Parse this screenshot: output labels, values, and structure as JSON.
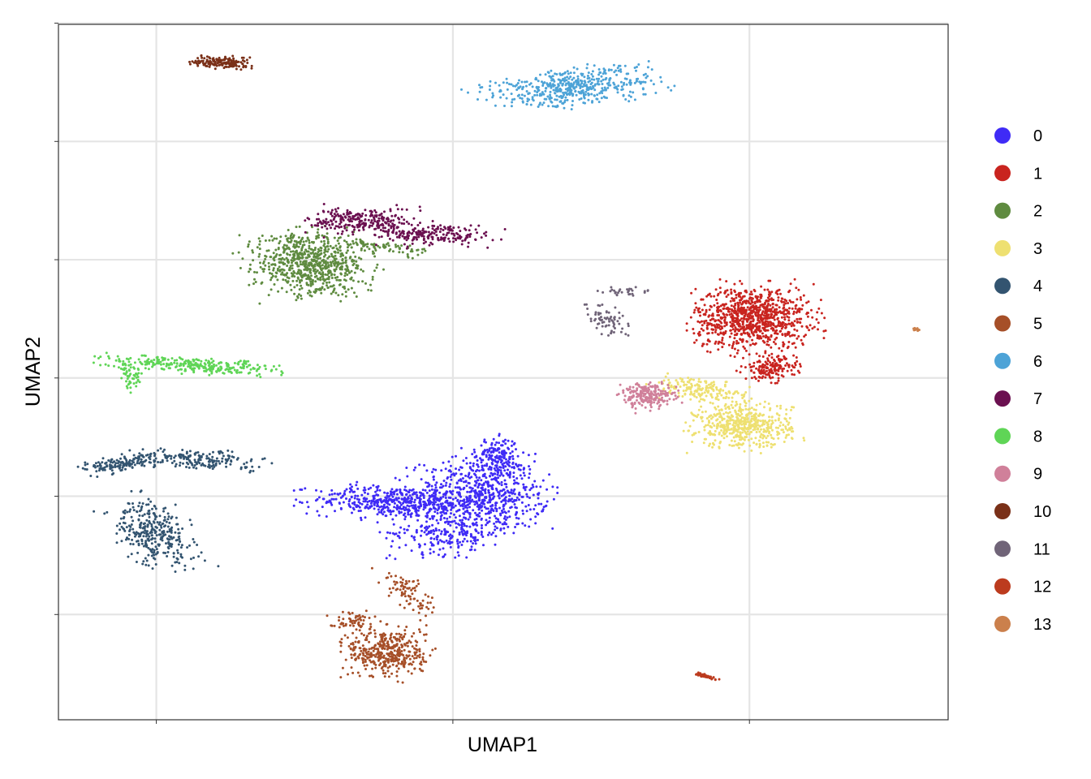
{
  "chart_data": {
    "type": "scatter",
    "title": "",
    "xlabel": "UMAP1",
    "ylabel": "UMAP2",
    "x_ticks_labeled": false,
    "y_ticks_labeled": false,
    "xlim": [
      -3.3,
      26.7
    ],
    "ylim": [
      -28.9,
      29.9
    ],
    "x_gridlines": [
      0,
      10,
      20
    ],
    "y_gridlines": [
      -20,
      -10,
      0,
      10,
      20,
      30
    ],
    "grid": true,
    "legend_position": "right",
    "clusters": [
      {
        "name": "0",
        "color": "#3F2BF6",
        "n": 1500,
        "blobs": [
          {
            "x": 11.0,
            "y": -9.8,
            "sx": 1.05,
            "sy": 1.55,
            "rot": 0.15,
            "w": 0.45
          },
          {
            "x": 8.0,
            "y": -10.5,
            "sx": 1.35,
            "sy": 0.65,
            "rot": -0.1,
            "w": 0.3
          },
          {
            "x": 9.8,
            "y": -13.1,
            "sx": 1.0,
            "sy": 0.9,
            "rot": 0.0,
            "w": 0.15
          },
          {
            "x": 11.5,
            "y": -6.5,
            "sx": 0.35,
            "sy": 0.7,
            "rot": 0.0,
            "w": 0.1
          }
        ]
      },
      {
        "name": "1",
        "color": "#C9241F",
        "n": 1100,
        "blobs": [
          {
            "x": 20.1,
            "y": 5.1,
            "sx": 0.95,
            "sy": 1.3,
            "rot": 0.0,
            "w": 0.85
          },
          {
            "x": 20.7,
            "y": 0.8,
            "sx": 0.45,
            "sy": 0.5,
            "rot": 0.0,
            "w": 0.15
          }
        ]
      },
      {
        "name": "2",
        "color": "#5F8B40",
        "n": 800,
        "blobs": [
          {
            "x": 5.2,
            "y": 9.6,
            "sx": 0.95,
            "sy": 1.25,
            "rot": 0.2,
            "w": 0.9
          },
          {
            "x": 7.5,
            "y": 11.1,
            "sx": 0.9,
            "sy": 0.25,
            "rot": -0.35,
            "w": 0.1
          }
        ]
      },
      {
        "name": "3",
        "color": "#EEE071",
        "n": 700,
        "blobs": [
          {
            "x": 19.8,
            "y": -4.0,
            "sx": 0.8,
            "sy": 0.95,
            "rot": 0.0,
            "w": 0.75
          },
          {
            "x": 18.3,
            "y": -1.0,
            "sx": 0.8,
            "sy": 0.45,
            "rot": -0.35,
            "w": 0.25
          }
        ]
      },
      {
        "name": "4",
        "color": "#335470",
        "n": 650,
        "blobs": [
          {
            "x": -0.1,
            "y": -13.0,
            "sx": 0.6,
            "sy": 1.35,
            "rot": 0.25,
            "w": 0.5
          },
          {
            "x": 1.2,
            "y": -6.9,
            "sx": 1.1,
            "sy": 0.4,
            "rot": -0.15,
            "w": 0.3
          },
          {
            "x": -1.3,
            "y": -7.3,
            "sx": 0.6,
            "sy": 0.3,
            "rot": 0.4,
            "w": 0.2
          }
        ]
      },
      {
        "name": "5",
        "color": "#A64F28",
        "n": 550,
        "blobs": [
          {
            "x": 7.8,
            "y": -23.2,
            "sx": 0.65,
            "sy": 1.05,
            "rot": 0.0,
            "w": 0.75
          },
          {
            "x": 8.4,
            "y": -18.0,
            "sx": 0.3,
            "sy": 0.9,
            "rot": 0.35,
            "w": 0.15
          },
          {
            "x": 6.6,
            "y": -20.5,
            "sx": 0.4,
            "sy": 0.35,
            "rot": 0.0,
            "w": 0.1
          }
        ]
      },
      {
        "name": "6",
        "color": "#4DA3D7",
        "n": 500,
        "blobs": [
          {
            "x": 14.0,
            "y": 24.6,
            "sx": 1.45,
            "sy": 0.75,
            "rot": 0.3,
            "w": 1.0
          }
        ]
      },
      {
        "name": "7",
        "color": "#6B1050",
        "n": 450,
        "blobs": [
          {
            "x": 6.9,
            "y": 13.3,
            "sx": 0.85,
            "sy": 0.55,
            "rot": 0.0,
            "w": 0.55
          },
          {
            "x": 9.3,
            "y": 12.1,
            "sx": 0.95,
            "sy": 0.45,
            "rot": 0.0,
            "w": 0.45
          }
        ]
      },
      {
        "name": "8",
        "color": "#5FD556",
        "n": 350,
        "blobs": [
          {
            "x": 1.2,
            "y": 1.1,
            "sx": 1.45,
            "sy": 0.3,
            "rot": -0.12,
            "w": 0.85
          },
          {
            "x": -0.8,
            "y": 0.0,
            "sx": 0.2,
            "sy": 0.6,
            "rot": 0.0,
            "w": 0.15
          }
        ]
      },
      {
        "name": "9",
        "color": "#D0809A",
        "n": 220,
        "blobs": [
          {
            "x": 16.6,
            "y": -1.5,
            "sx": 0.45,
            "sy": 0.5,
            "rot": 0.3,
            "w": 1.0
          }
        ]
      },
      {
        "name": "10",
        "color": "#7A3018",
        "n": 160,
        "blobs": [
          {
            "x": 2.2,
            "y": 26.7,
            "sx": 0.45,
            "sy": 0.25,
            "rot": -0.1,
            "w": 1.0
          }
        ]
      },
      {
        "name": "11",
        "color": "#706478",
        "n": 100,
        "blobs": [
          {
            "x": 15.2,
            "y": 4.9,
            "sx": 0.3,
            "sy": 0.65,
            "rot": 0.25,
            "w": 0.7
          },
          {
            "x": 15.8,
            "y": 7.3,
            "sx": 0.4,
            "sy": 0.2,
            "rot": 0.0,
            "w": 0.3
          }
        ]
      },
      {
        "name": "12",
        "color": "#BC3B1E",
        "n": 60,
        "blobs": [
          {
            "x": 18.5,
            "y": -25.2,
            "sx": 0.22,
            "sy": 0.05,
            "rot": -0.6,
            "w": 1.0
          }
        ]
      },
      {
        "name": "13",
        "color": "#CB804C",
        "n": 12,
        "blobs": [
          {
            "x": 25.6,
            "y": 4.1,
            "sx": 0.08,
            "sy": 0.08,
            "rot": 0.0,
            "w": 1.0
          }
        ]
      }
    ]
  }
}
